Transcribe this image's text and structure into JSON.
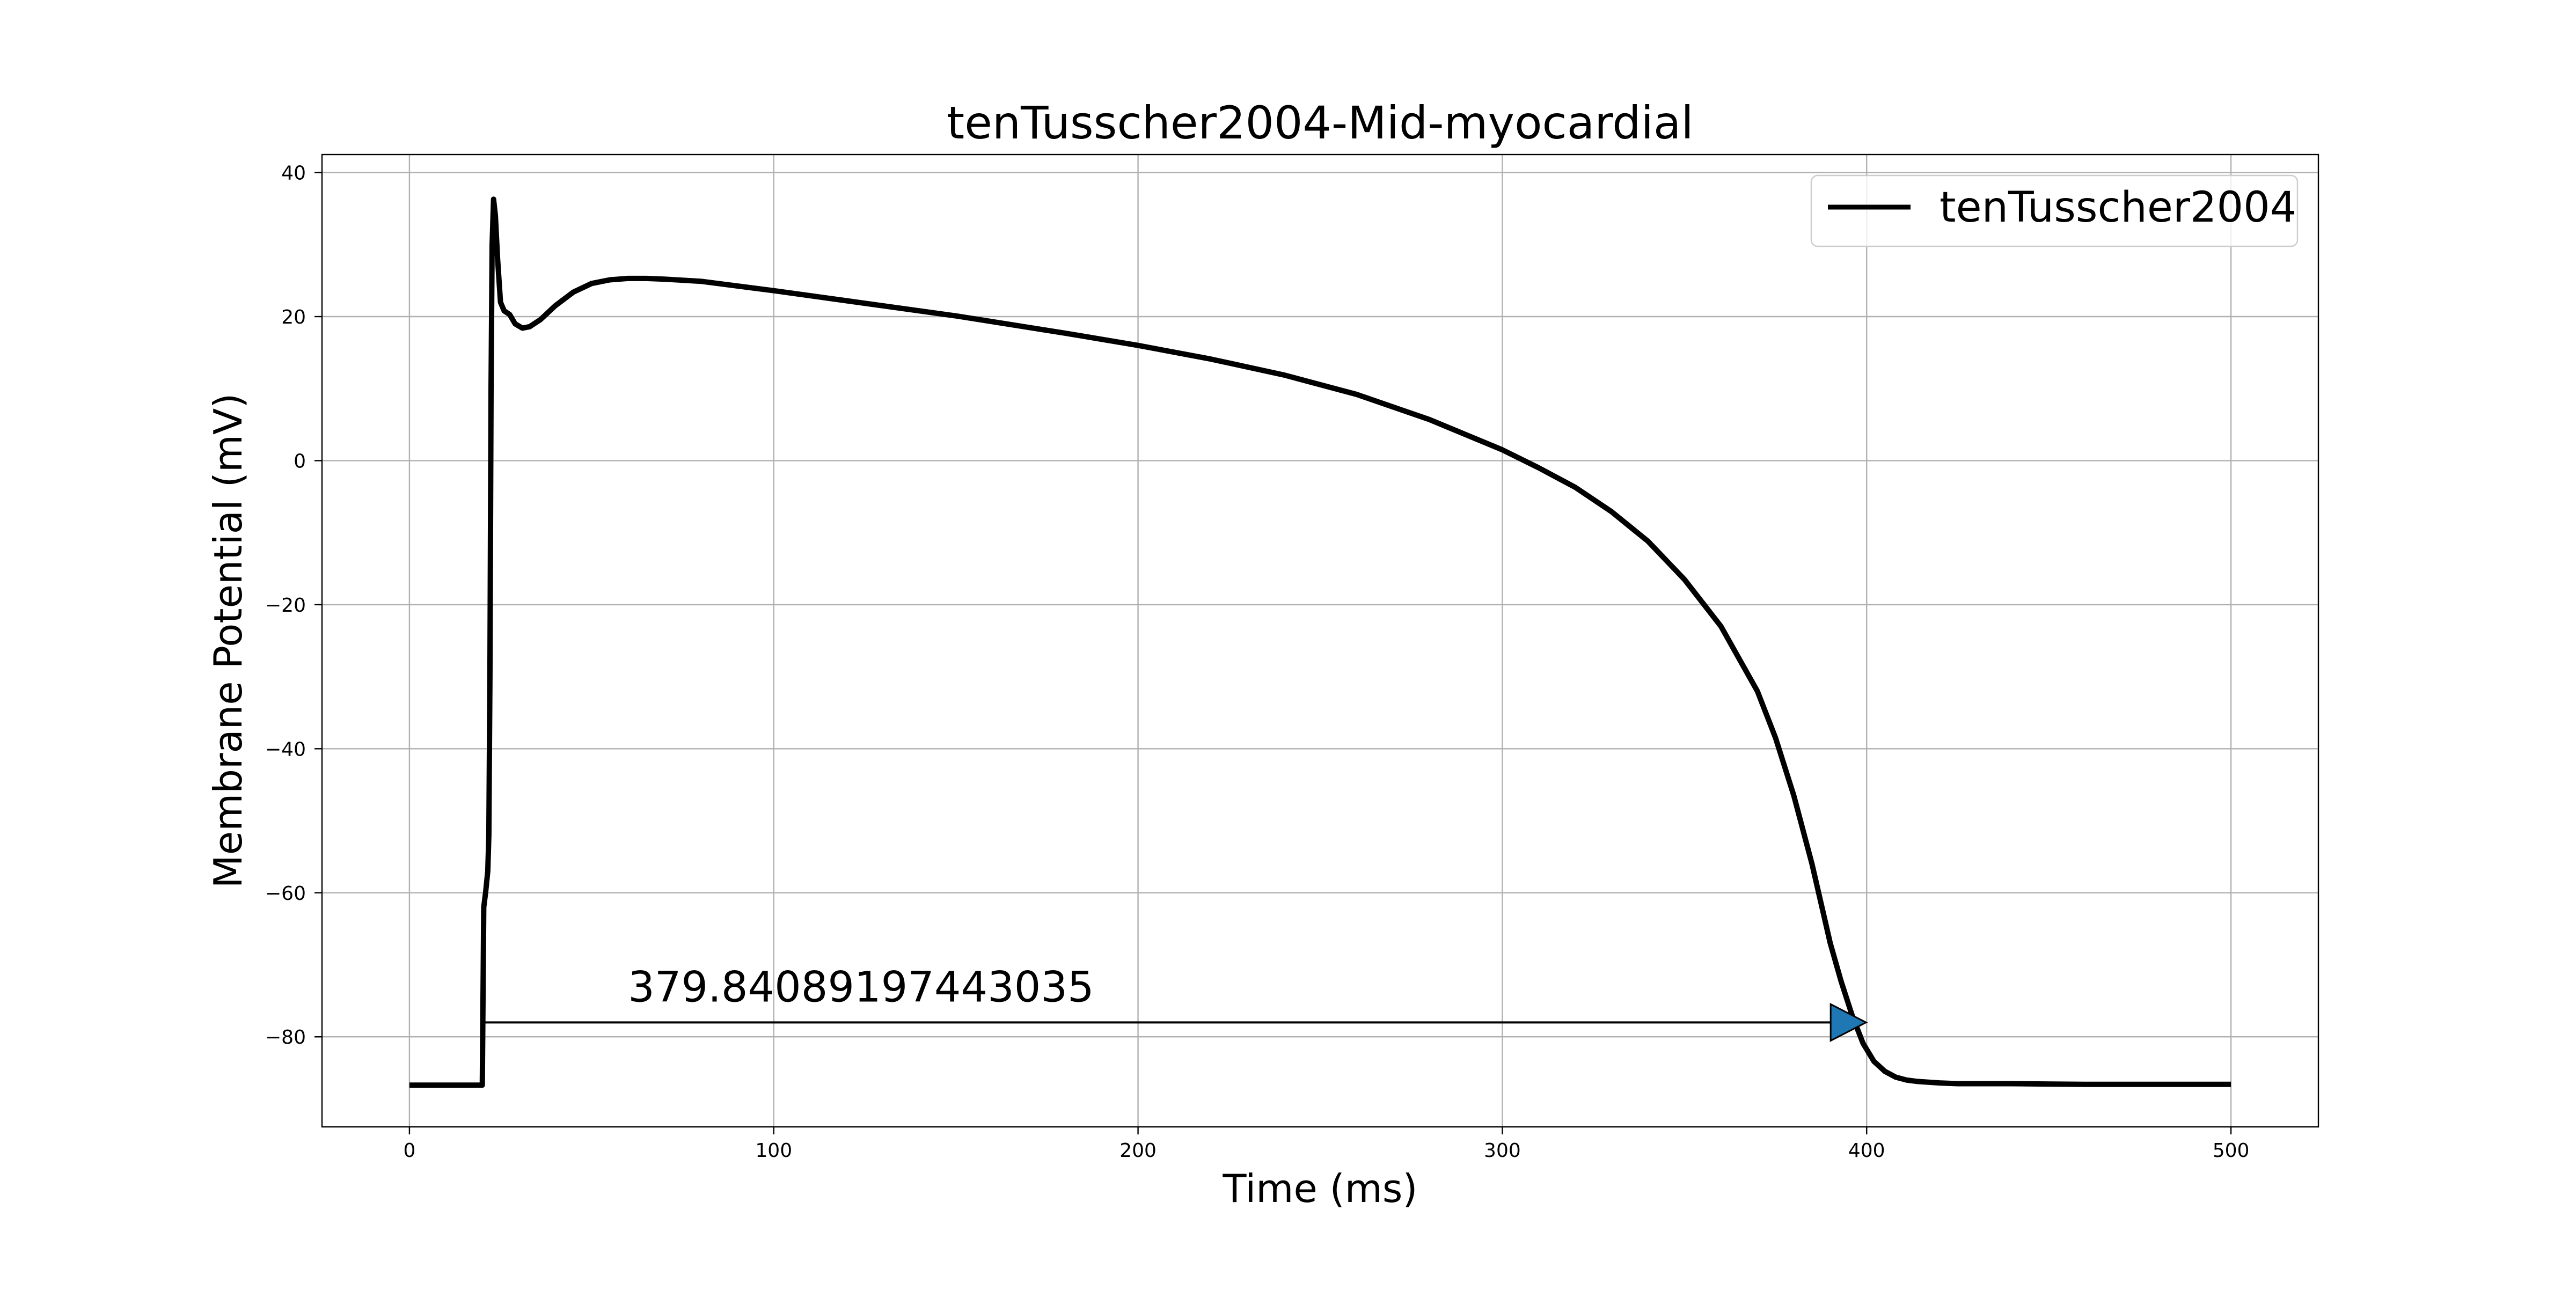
{
  "chart_data": {
    "type": "line",
    "title": "tenTusscher2004-Mid-myocardial",
    "xlabel": "Time (ms)",
    "ylabel": "Membrane Potential (mV)",
    "xlim": [
      -24,
      524
    ],
    "ylim": [
      -92.5,
      42.5
    ],
    "grid": true,
    "legend_position": "upper right",
    "x_ticks": [
      0,
      100,
      200,
      300,
      400,
      500
    ],
    "y_ticks": [
      -80,
      -60,
      -40,
      -20,
      0,
      20,
      40
    ],
    "x_tick_labels": [
      "0",
      "100",
      "200",
      "300",
      "400",
      "500"
    ],
    "y_tick_labels": [
      "−80",
      "−60",
      "−40",
      "−20",
      "0",
      "20",
      "40"
    ],
    "series": [
      {
        "name": "tenTusscher2004",
        "color": "#000000",
        "x": [
          0,
          20,
          20.4,
          20.9,
          21.5,
          21.8,
          22.1,
          22.4,
          22.7,
          23.1,
          23.6,
          24.2,
          25,
          26,
          27.5,
          29,
          31,
          33,
          36,
          40,
          45,
          50,
          55,
          60,
          65,
          70,
          80,
          100,
          120,
          150,
          180,
          200,
          220,
          240,
          260,
          280,
          300,
          310,
          320,
          330,
          340,
          350,
          360,
          370,
          375,
          380,
          385,
          390,
          393,
          396,
          399,
          402,
          405,
          408,
          411,
          414,
          417,
          420,
          425,
          430,
          440,
          460,
          480,
          500
        ],
        "y": [
          -86.7,
          -86.7,
          -62,
          -60,
          -57,
          -52,
          -30,
          10,
          30,
          36.3,
          34,
          28,
          22,
          20.8,
          20.3,
          19,
          18.4,
          18.6,
          19.6,
          21.5,
          23.4,
          24.6,
          25.1,
          25.3,
          25.3,
          25.2,
          24.9,
          23.6,
          22.2,
          20.1,
          17.7,
          16,
          14.1,
          11.9,
          9.2,
          5.7,
          1.5,
          -1,
          -3.7,
          -7.1,
          -11.2,
          -16.5,
          -23,
          -32,
          -38.5,
          -46.5,
          -56,
          -67,
          -72.3,
          -77,
          -80.9,
          -83.4,
          -84.8,
          -85.6,
          -86,
          -86.2,
          -86.3,
          -86.4,
          -86.5,
          -86.5,
          -86.5,
          -86.6,
          -86.6,
          -86.6
        ]
      }
    ],
    "annotation": {
      "text": "379.84089197443035",
      "arrow_start": [
        20,
        -78
      ],
      "arrow_end": [
        399.84,
        -78
      ],
      "text_anchor": [
        60,
        -73
      ],
      "arrow_color": "#1f77b4"
    }
  }
}
